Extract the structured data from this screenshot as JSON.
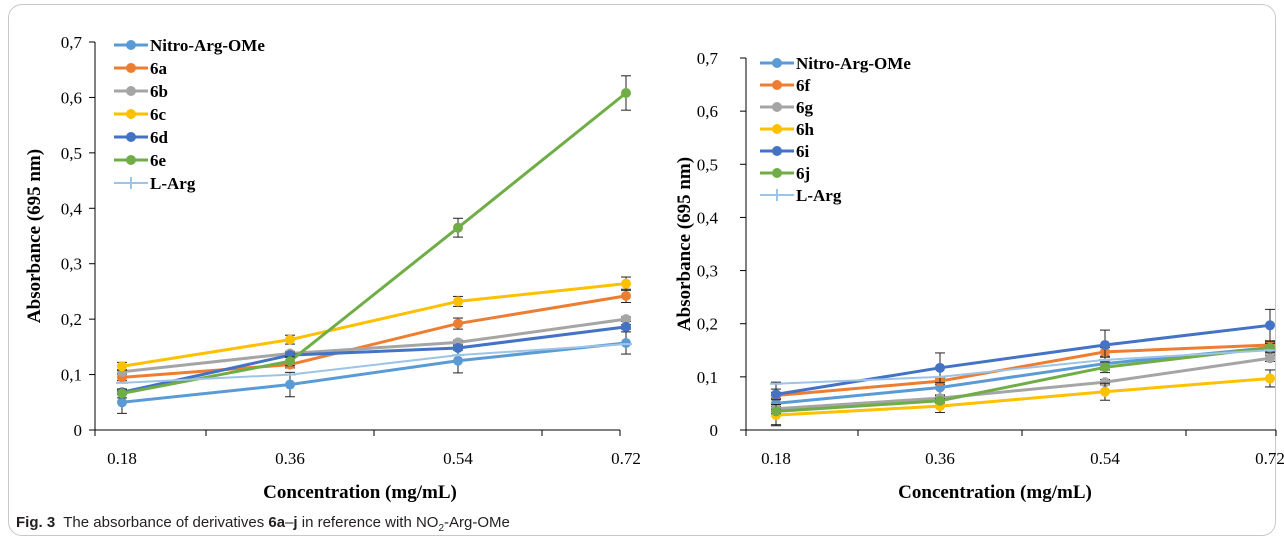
{
  "caption": {
    "label": "Fig. 3",
    "text_before": "The absorbance of derivatives",
    "bold_range_start": "6a",
    "dash": "–",
    "bold_range_end": "j",
    "text_middle": "in reference with NO",
    "subscript": "2",
    "text_after": "-Arg-OMe"
  },
  "chart_data": [
    {
      "type": "line",
      "xlabel": "Concentration (mg/mL)",
      "ylabel": "Absorbance  (695 nm)",
      "x": [
        "0.18",
        "0.36",
        "0.54",
        "0.72"
      ],
      "ylim": [
        0,
        0.7
      ],
      "yticks": [
        0,
        0.1,
        0.2,
        0.3,
        0.4,
        0.5,
        0.6,
        0.7
      ],
      "ytick_labels": [
        "0",
        "0,1",
        "0,2",
        "0,3",
        "0,4",
        "0,5",
        "0,6",
        "0,7"
      ],
      "legend_position": "top-left",
      "grid": false,
      "series": [
        {
          "name": "Nitro-Arg-OMe",
          "color": "#5B9BD5",
          "values": [
            0.05,
            0.082,
            0.125,
            0.157
          ],
          "error": [
            0.02,
            0.022,
            0.022,
            0.02
          ]
        },
        {
          "name": "6a",
          "color": "#ED7D31",
          "values": [
            0.095,
            0.118,
            0.192,
            0.242
          ],
          "error": [
            0.006,
            0.006,
            0.01,
            0.012
          ]
        },
        {
          "name": "6b",
          "color": "#A5A5A5",
          "values": [
            0.105,
            0.138,
            0.158,
            0.2
          ],
          "error": [
            0.004,
            0.004,
            0.004,
            0.004
          ]
        },
        {
          "name": "6c",
          "color": "#FFC000",
          "values": [
            0.115,
            0.163,
            0.232,
            0.264
          ],
          "error": [
            0.007,
            0.008,
            0.009,
            0.012
          ]
        },
        {
          "name": "6d",
          "color": "#4472C4",
          "values": [
            0.068,
            0.135,
            0.148,
            0.186
          ],
          "error": [
            0.004,
            0.004,
            0.004,
            0.004
          ]
        },
        {
          "name": "6e",
          "color": "#70AD47",
          "values": [
            0.066,
            0.124,
            0.365,
            0.608
          ],
          "error": [
            0.008,
            0.008,
            0.017,
            0.031
          ]
        },
        {
          "name": "L-Arg",
          "color": "#9DC3E6",
          "values": [
            0.085,
            0.1,
            0.135,
            0.155
          ],
          "error": [
            0,
            0,
            0,
            0
          ]
        }
      ]
    },
    {
      "type": "line",
      "xlabel": "Concentration (mg/mL)",
      "ylabel": "Absorbance  (695 nm)",
      "x": [
        "0.18",
        "0.36",
        "0.54",
        "0.72"
      ],
      "ylim": [
        0,
        0.7
      ],
      "yticks": [
        0,
        0.1,
        0.2,
        0.3,
        0.4,
        0.5,
        0.6,
        0.7
      ],
      "ytick_labels": [
        "0",
        "0,1",
        "0,2",
        "0,3",
        "0,4",
        "0,5",
        "0,6",
        "0,7"
      ],
      "legend_position": "top-left",
      "grid": false,
      "series": [
        {
          "name": "Nitro-Arg-OMe",
          "color": "#5B9BD5",
          "values": [
            0.05,
            0.08,
            0.125,
            0.155
          ],
          "error": [
            0.04,
            0.014,
            0.012,
            0.01
          ]
        },
        {
          "name": "6f",
          "color": "#ED7D31",
          "values": [
            0.065,
            0.092,
            0.147,
            0.16
          ],
          "error": [
            0.006,
            0.006,
            0.008,
            0.008
          ]
        },
        {
          "name": "6g",
          "color": "#A5A5A5",
          "values": [
            0.04,
            0.06,
            0.09,
            0.135
          ],
          "error": [
            0.004,
            0.004,
            0.005,
            0.006
          ]
        },
        {
          "name": "6h",
          "color": "#FFC000",
          "values": [
            0.028,
            0.045,
            0.072,
            0.097
          ],
          "error": [
            0.02,
            0.012,
            0.016,
            0.016
          ]
        },
        {
          "name": "6i",
          "color": "#4472C4",
          "values": [
            0.067,
            0.117,
            0.16,
            0.197
          ],
          "error": [
            0.01,
            0.028,
            0.028,
            0.03
          ]
        },
        {
          "name": "6j",
          "color": "#70AD47",
          "values": [
            0.035,
            0.055,
            0.118,
            0.155
          ],
          "error": [
            0.004,
            0.004,
            0.01,
            0.008
          ]
        },
        {
          "name": "L-Arg",
          "color": "#9DC3E6",
          "values": [
            0.087,
            0.1,
            0.132,
            0.15
          ],
          "error": [
            0,
            0,
            0,
            0
          ]
        }
      ]
    }
  ]
}
